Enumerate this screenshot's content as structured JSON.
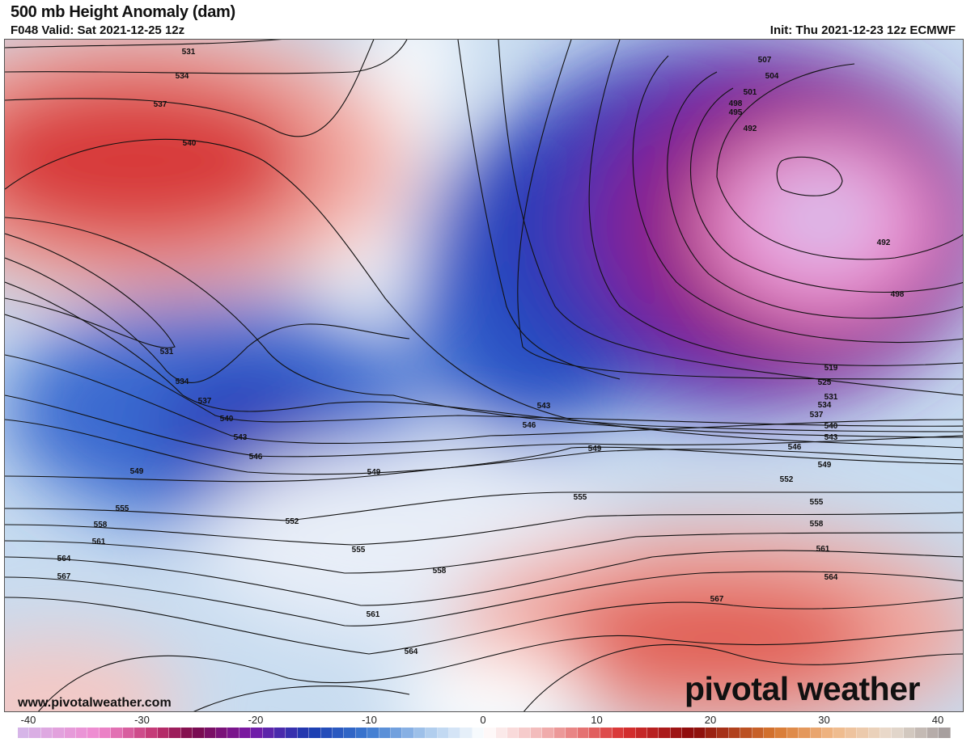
{
  "header": {
    "title": "500 mb Height Anomaly (dam)",
    "valid": "F048 Valid: Sat 2021-12-25 12z",
    "init": "Init: Thu 2021-12-23 12z ECMWF"
  },
  "footer": {
    "site": "www.pivotalweather.com",
    "logo": "pivotal weather"
  },
  "colorbar": {
    "range": [
      -40,
      40
    ],
    "ticks": [
      "-40",
      "-30",
      "-20",
      "-10",
      "0",
      "10",
      "20",
      "30",
      "40"
    ],
    "colors": {
      "-40": "#d4b8ea",
      "-33": "#f08ad0",
      "-28": "#c0326e",
      "-25": "#7a0a4a",
      "-20": "#7a1aa8",
      "-15": "#1a3ab0",
      "-10": "#3a78d0",
      "-5": "#a8c8ec",
      "0": "#ffffff",
      "5": "#f2b4b4",
      "12": "#d83030",
      "18": "#8a0a0a",
      "25": "#d87830",
      "30": "#f0b888",
      "35": "#e8dcd0",
      "40": "#a09898"
    }
  },
  "contour_labels": [
    "531",
    "534",
    "537",
    "540",
    "531",
    "534",
    "537",
    "540",
    "543",
    "546",
    "549",
    "549",
    "552",
    "555",
    "558",
    "561",
    "564",
    "567",
    "555",
    "558",
    "561",
    "564",
    "543",
    "546",
    "549",
    "555",
    "507",
    "504",
    "501",
    "498",
    "495",
    "492",
    "492",
    "498",
    "519",
    "525",
    "531",
    "534",
    "537",
    "540",
    "543",
    "546",
    "549",
    "552",
    "555",
    "558",
    "561",
    "564",
    "567"
  ]
}
